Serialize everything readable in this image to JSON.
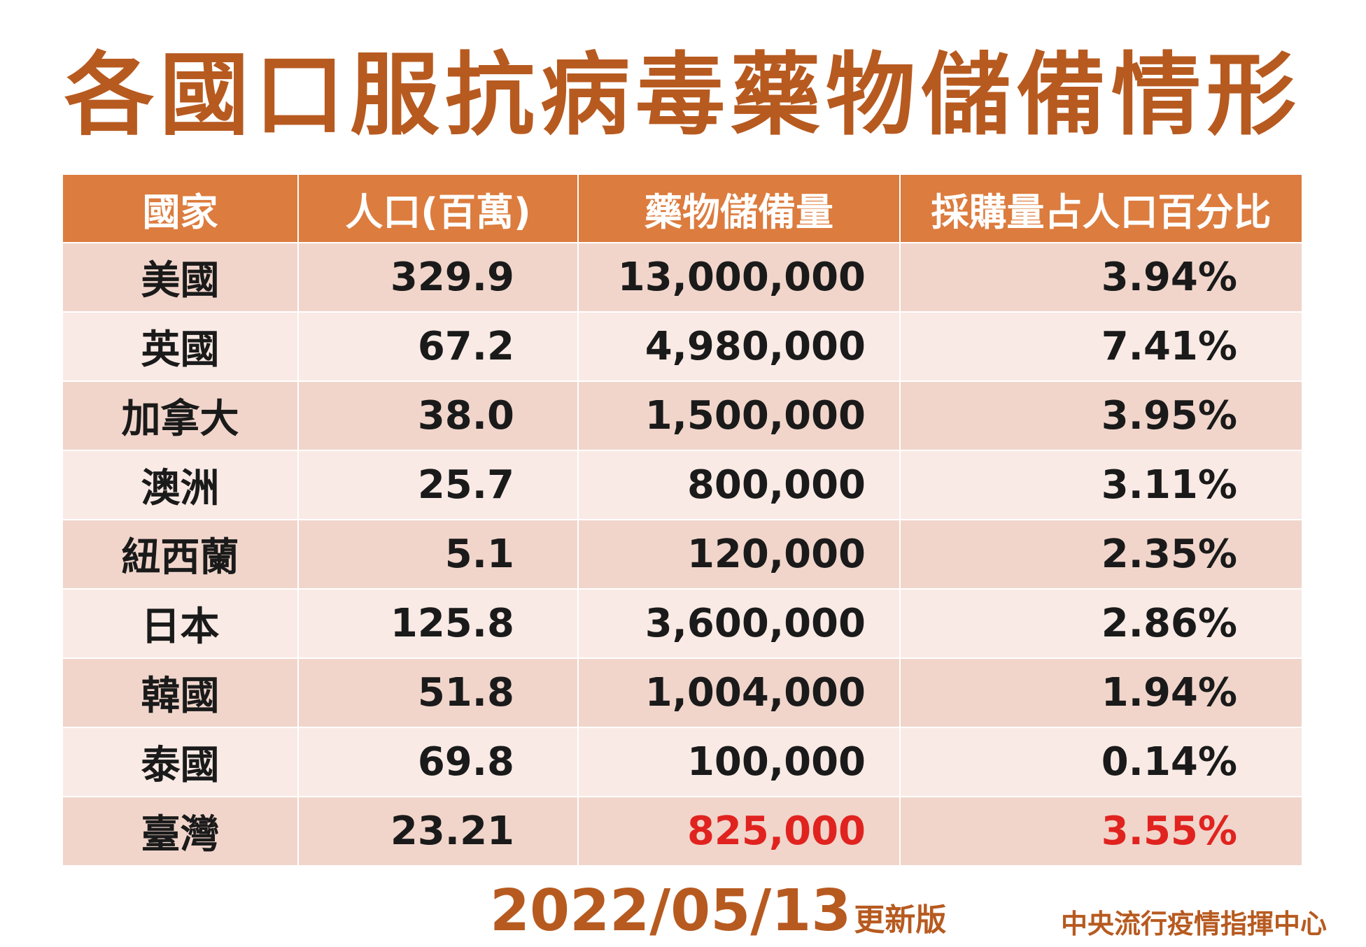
{
  "title": "各國口服抗病毒藥物儲備情形",
  "table": {
    "headers": [
      "國家",
      "人口(百萬)",
      "藥物儲備量",
      "採購量占人口百分比"
    ],
    "rows": [
      {
        "country": "美國",
        "population": "329.9",
        "stockpile": "13,000,000",
        "percent": "3.94%"
      },
      {
        "country": "英國",
        "population": "67.2",
        "stockpile": "4,980,000",
        "percent": "7.41%"
      },
      {
        "country": "加拿大",
        "population": "38.0",
        "stockpile": "1,500,000",
        "percent": "3.95%"
      },
      {
        "country": "澳洲",
        "population": "25.7",
        "stockpile": "800,000",
        "percent": "3.11%"
      },
      {
        "country": "紐西蘭",
        "population": "5.1",
        "stockpile": "120,000",
        "percent": "2.35%"
      },
      {
        "country": "日本",
        "population": "125.8",
        "stockpile": "3,600,000",
        "percent": "2.86%"
      },
      {
        "country": "韓國",
        "population": "51.8",
        "stockpile": "1,004,000",
        "percent": "1.94%"
      },
      {
        "country": "泰國",
        "population": "69.8",
        "stockpile": "100,000",
        "percent": "0.14%"
      },
      {
        "country": "臺灣",
        "population": "23.21",
        "stockpile": "825,000",
        "percent": "3.55%"
      }
    ]
  },
  "footer": {
    "date": "2022/05/13",
    "date_suffix": "更新版",
    "agency": "中央流行疫情指揮中心"
  },
  "colors": {
    "title": "#b75a20",
    "header_bg": "#dc7c3e",
    "row_dark": "#f1d5cb",
    "row_light": "#f9eae5",
    "highlight": "#e0231f"
  }
}
